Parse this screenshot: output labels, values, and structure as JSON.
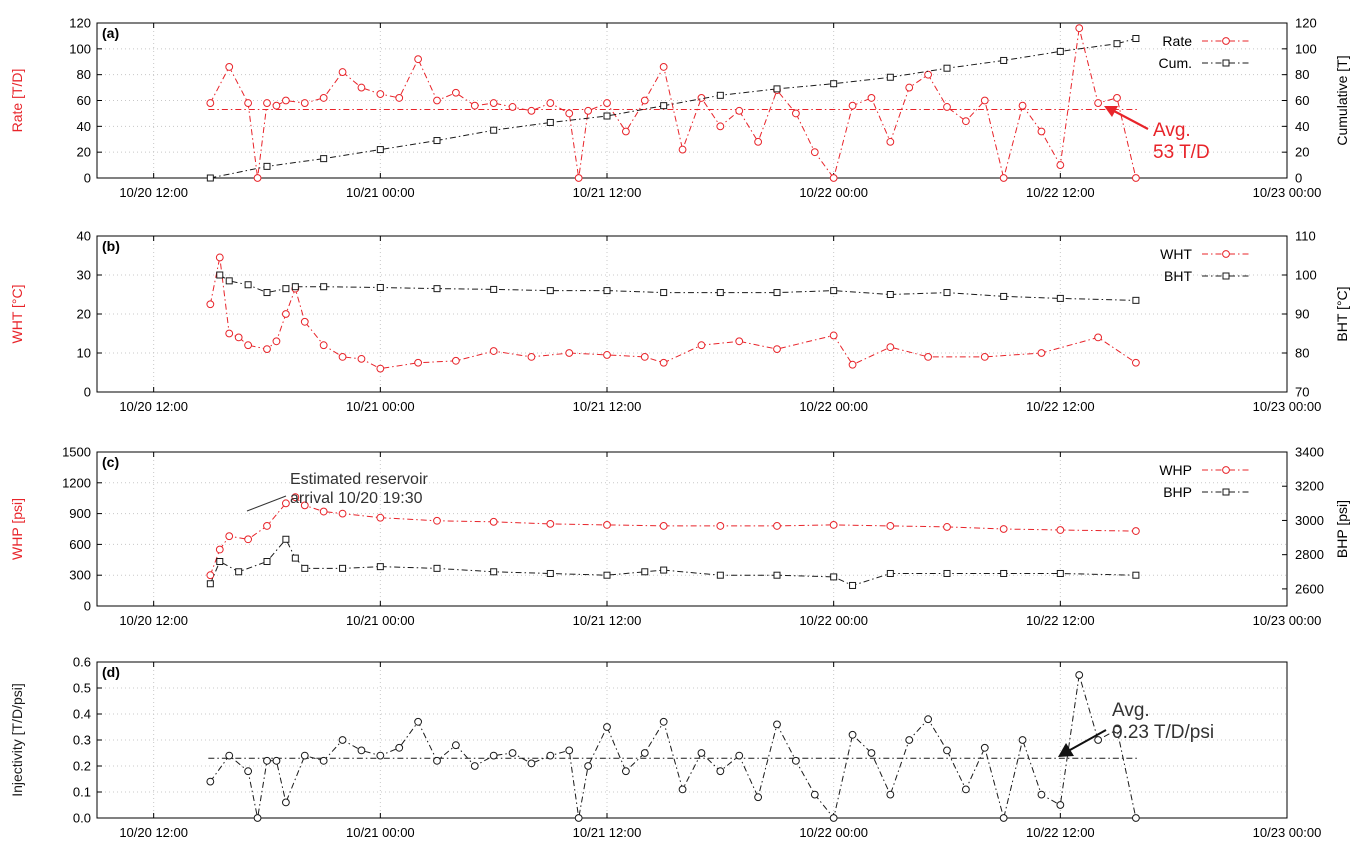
{
  "colors": {
    "red": "#e8242a",
    "black": "#1a1a1a",
    "grid": "#c8c8c8"
  },
  "chart_data": [
    {
      "panel": "(a)",
      "type": "line",
      "xlim": [
        "10/20 09:00",
        "10/23 00:00"
      ],
      "xticks": [
        "10/20 12:00",
        "10/21 00:00",
        "10/21 12:00",
        "10/22 00:00",
        "10/22 12:00",
        "10/23 00:00"
      ],
      "ylabel": "Rate [T/D]",
      "ylim": [
        0,
        120
      ],
      "yticks": [
        "0",
        "20",
        "40",
        "60",
        "80",
        "100",
        "120"
      ],
      "y2label": "Cumulative [T]",
      "y2lim": [
        0,
        120
      ],
      "y2ticks": [
        "0",
        "20",
        "40",
        "60",
        "80",
        "100",
        "120"
      ],
      "series": [
        {
          "name": "Rate",
          "axis": "left",
          "color": "#e8242a",
          "marker": "circle",
          "dash": "dashdot",
          "x": [
            "10/20 15:00",
            "10/20 16:00",
            "10/20 17:00",
            "10/20 17:30",
            "10/20 18:00",
            "10/20 18:30",
            "10/20 19:00",
            "10/20 20:00",
            "10/20 21:00",
            "10/20 22:00",
            "10/20 23:00",
            "10/21 00:00",
            "10/21 01:00",
            "10/21 02:00",
            "10/21 03:00",
            "10/21 04:00",
            "10/21 05:00",
            "10/21 06:00",
            "10/21 07:00",
            "10/21 08:00",
            "10/21 09:00",
            "10/21 10:00",
            "10/21 10:30",
            "10/21 11:00",
            "10/21 12:00",
            "10/21 13:00",
            "10/21 14:00",
            "10/21 15:00",
            "10/21 16:00",
            "10/21 17:00",
            "10/21 18:00",
            "10/21 19:00",
            "10/21 20:00",
            "10/21 21:00",
            "10/21 22:00",
            "10/21 23:00",
            "10/22 00:00",
            "10/22 01:00",
            "10/22 02:00",
            "10/22 03:00",
            "10/22 04:00",
            "10/22 05:00",
            "10/22 06:00",
            "10/22 07:00",
            "10/22 08:00",
            "10/22 09:00",
            "10/22 10:00",
            "10/22 11:00",
            "10/22 12:00",
            "10/22 13:00",
            "10/22 14:00",
            "10/22 15:00",
            "10/22 16:00"
          ],
          "y": [
            58,
            86,
            58,
            0,
            58,
            56,
            60,
            58,
            62,
            82,
            70,
            65,
            62,
            92,
            60,
            66,
            56,
            58,
            55,
            52,
            58,
            50,
            0,
            52,
            58,
            36,
            60,
            86,
            22,
            62,
            40,
            52,
            28,
            68,
            50,
            20,
            0,
            56,
            62,
            28,
            70,
            80,
            55,
            44,
            60,
            0,
            56,
            36,
            10,
            116,
            58,
            62,
            0
          ]
        },
        {
          "name": "Cum.",
          "axis": "right",
          "color": "#1a1a1a",
          "marker": "square",
          "dash": "dashdot",
          "x": [
            "10/20 15:00",
            "10/20 18:00",
            "10/20 21:00",
            "10/21 00:00",
            "10/21 03:00",
            "10/21 06:00",
            "10/21 09:00",
            "10/21 12:00",
            "10/21 15:00",
            "10/21 18:00",
            "10/21 21:00",
            "10/22 00:00",
            "10/22 03:00",
            "10/22 06:00",
            "10/22 09:00",
            "10/22 12:00",
            "10/22 15:00",
            "10/22 16:00"
          ],
          "y": [
            0,
            9,
            15,
            22,
            29,
            37,
            43,
            48,
            56,
            64,
            69,
            73,
            78,
            85,
            91,
            98,
            104,
            108
          ]
        }
      ],
      "reference_line": {
        "value": 53,
        "axis": "left",
        "color": "#e8242a"
      },
      "annotation": [
        "Avg.",
        "53 T/D"
      ]
    },
    {
      "panel": "(b)",
      "type": "line",
      "ylabel": "WHT [°C]",
      "ylim": [
        0,
        40
      ],
      "yticks": [
        "0",
        "10",
        "20",
        "30",
        "40"
      ],
      "y2label": "BHT [°C]",
      "y2lim": [
        70,
        110
      ],
      "y2ticks": [
        "70",
        "80",
        "90",
        "100",
        "110"
      ],
      "series": [
        {
          "name": "WHT",
          "axis": "left",
          "color": "#e8242a",
          "marker": "circle",
          "dash": "dashdot",
          "x": [
            "10/20 15:00",
            "10/20 15:30",
            "10/20 16:00",
            "10/20 16:30",
            "10/20 17:00",
            "10/20 18:00",
            "10/20 18:30",
            "10/20 19:00",
            "10/20 19:30",
            "10/20 20:00",
            "10/20 21:00",
            "10/20 22:00",
            "10/20 23:00",
            "10/21 00:00",
            "10/21 02:00",
            "10/21 04:00",
            "10/21 06:00",
            "10/21 08:00",
            "10/21 10:00",
            "10/21 12:00",
            "10/21 14:00",
            "10/21 15:00",
            "10/21 17:00",
            "10/21 19:00",
            "10/21 21:00",
            "10/22 00:00",
            "10/22 01:00",
            "10/22 03:00",
            "10/22 05:00",
            "10/22 08:00",
            "10/22 11:00",
            "10/22 14:00",
            "10/22 16:00"
          ],
          "y": [
            22.5,
            34.5,
            15,
            14,
            12,
            11,
            13,
            20,
            26.5,
            18,
            12,
            9,
            8.5,
            6,
            7.5,
            8,
            10.5,
            9,
            10,
            9.5,
            9,
            7.5,
            12,
            13,
            11,
            14.5,
            7,
            11.5,
            9,
            9,
            10,
            14,
            7.5
          ]
        },
        {
          "name": "BHT",
          "axis": "right",
          "color": "#1a1a1a",
          "marker": "square",
          "dash": "dashdot",
          "x": [
            "10/20 15:30",
            "10/20 16:00",
            "10/20 17:00",
            "10/20 18:00",
            "10/20 19:00",
            "10/20 19:30",
            "10/20 21:00",
            "10/21 00:00",
            "10/21 03:00",
            "10/21 06:00",
            "10/21 09:00",
            "10/21 12:00",
            "10/21 15:00",
            "10/21 18:00",
            "10/21 21:00",
            "10/22 00:00",
            "10/22 03:00",
            "10/22 06:00",
            "10/22 09:00",
            "10/22 12:00",
            "10/22 16:00"
          ],
          "y": [
            100,
            98.5,
            97.5,
            95.5,
            96.5,
            97,
            97,
            96.8,
            96.5,
            96.3,
            96,
            96,
            95.5,
            95.5,
            95.5,
            96,
            95,
            95.5,
            94.5,
            94,
            93.5
          ]
        }
      ]
    },
    {
      "panel": "(c)",
      "type": "line",
      "ylabel": "WHP [psi]",
      "ylim": [
        0,
        1500
      ],
      "yticks": [
        "0",
        "300",
        "600",
        "900",
        "1200",
        "1500"
      ],
      "y2label": "BHP [psi]",
      "y2lim": [
        2500,
        3400
      ],
      "y2ticks": [
        "2600",
        "2800",
        "3000",
        "3200",
        "3400"
      ],
      "series": [
        {
          "name": "WHP",
          "axis": "left",
          "color": "#e8242a",
          "marker": "circle",
          "dash": "dashdot",
          "x": [
            "10/20 15:00",
            "10/20 15:30",
            "10/20 16:00",
            "10/20 17:00",
            "10/20 18:00",
            "10/20 19:00",
            "10/20 19:30",
            "10/20 20:00",
            "10/20 21:00",
            "10/20 22:00",
            "10/21 00:00",
            "10/21 03:00",
            "10/21 06:00",
            "10/21 09:00",
            "10/21 12:00",
            "10/21 15:00",
            "10/21 18:00",
            "10/21 21:00",
            "10/22 00:00",
            "10/22 03:00",
            "10/22 06:00",
            "10/22 09:00",
            "10/22 12:00",
            "10/22 16:00"
          ],
          "y": [
            300,
            550,
            680,
            650,
            780,
            1000,
            1060,
            980,
            920,
            900,
            860,
            830,
            820,
            800,
            790,
            780,
            780,
            780,
            790,
            780,
            770,
            750,
            740,
            730
          ]
        },
        {
          "name": "BHP",
          "axis": "right",
          "color": "#1a1a1a",
          "marker": "square",
          "dash": "dashdot",
          "x": [
            "10/20 15:00",
            "10/20 15:30",
            "10/20 16:30",
            "10/20 18:00",
            "10/20 19:00",
            "10/20 19:30",
            "10/20 20:00",
            "10/20 22:00",
            "10/21 00:00",
            "10/21 03:00",
            "10/21 06:00",
            "10/21 09:00",
            "10/21 12:00",
            "10/21 14:00",
            "10/21 15:00",
            "10/21 18:00",
            "10/21 21:00",
            "10/22 00:00",
            "10/22 01:00",
            "10/22 03:00",
            "10/22 06:00",
            "10/22 09:00",
            "10/22 12:00",
            "10/22 16:00"
          ],
          "y": [
            2630,
            2760,
            2700,
            2760,
            2890,
            2780,
            2720,
            2720,
            2730,
            2720,
            2700,
            2690,
            2680,
            2700,
            2710,
            2680,
            2680,
            2670,
            2620,
            2690,
            2690,
            2690,
            2690,
            2680
          ]
        }
      ],
      "annotation": [
        "Estimated reservoir",
        "arrival 10/20 19:30"
      ]
    },
    {
      "panel": "(d)",
      "type": "line",
      "ylabel": "Injectivity [T/D/psi]",
      "ylim": [
        0,
        0.6
      ],
      "yticks": [
        "0.0",
        "0.1",
        "0.2",
        "0.3",
        "0.4",
        "0.5",
        "0.6"
      ],
      "series": [
        {
          "name": "",
          "axis": "left",
          "color": "#1a1a1a",
          "marker": "circle",
          "dash": "dashdot",
          "x": [
            "10/20 15:00",
            "10/20 16:00",
            "10/20 17:00",
            "10/20 17:30",
            "10/20 18:00",
            "10/20 18:30",
            "10/20 19:00",
            "10/20 20:00",
            "10/20 21:00",
            "10/20 22:00",
            "10/20 23:00",
            "10/21 00:00",
            "10/21 01:00",
            "10/21 02:00",
            "10/21 03:00",
            "10/21 04:00",
            "10/21 05:00",
            "10/21 06:00",
            "10/21 07:00",
            "10/21 08:00",
            "10/21 09:00",
            "10/21 10:00",
            "10/21 10:30",
            "10/21 11:00",
            "10/21 12:00",
            "10/21 13:00",
            "10/21 14:00",
            "10/21 15:00",
            "10/21 16:00",
            "10/21 17:00",
            "10/21 18:00",
            "10/21 19:00",
            "10/21 20:00",
            "10/21 21:00",
            "10/21 22:00",
            "10/21 23:00",
            "10/22 00:00",
            "10/22 01:00",
            "10/22 02:00",
            "10/22 03:00",
            "10/22 04:00",
            "10/22 05:00",
            "10/22 06:00",
            "10/22 07:00",
            "10/22 08:00",
            "10/22 09:00",
            "10/22 10:00",
            "10/22 11:00",
            "10/22 12:00",
            "10/22 13:00",
            "10/22 14:00",
            "10/22 15:00",
            "10/22 16:00"
          ],
          "y": [
            0.14,
            0.24,
            0.18,
            0.0,
            0.22,
            0.22,
            0.06,
            0.24,
            0.22,
            0.3,
            0.26,
            0.24,
            0.27,
            0.37,
            0.22,
            0.28,
            0.2,
            0.24,
            0.25,
            0.21,
            0.24,
            0.26,
            0.0,
            0.2,
            0.35,
            0.18,
            0.25,
            0.37,
            0.11,
            0.25,
            0.18,
            0.24,
            0.08,
            0.36,
            0.22,
            0.09,
            0.0,
            0.32,
            0.25,
            0.09,
            0.3,
            0.38,
            0.26,
            0.11,
            0.27,
            0.0,
            0.3,
            0.09,
            0.05,
            0.55,
            0.3,
            0.34,
            0.0
          ]
        }
      ],
      "reference_line": {
        "value": 0.23,
        "axis": "left",
        "color": "#1a1a1a"
      },
      "annotation": [
        "Avg.",
        "0.23 T/D/psi"
      ]
    }
  ]
}
